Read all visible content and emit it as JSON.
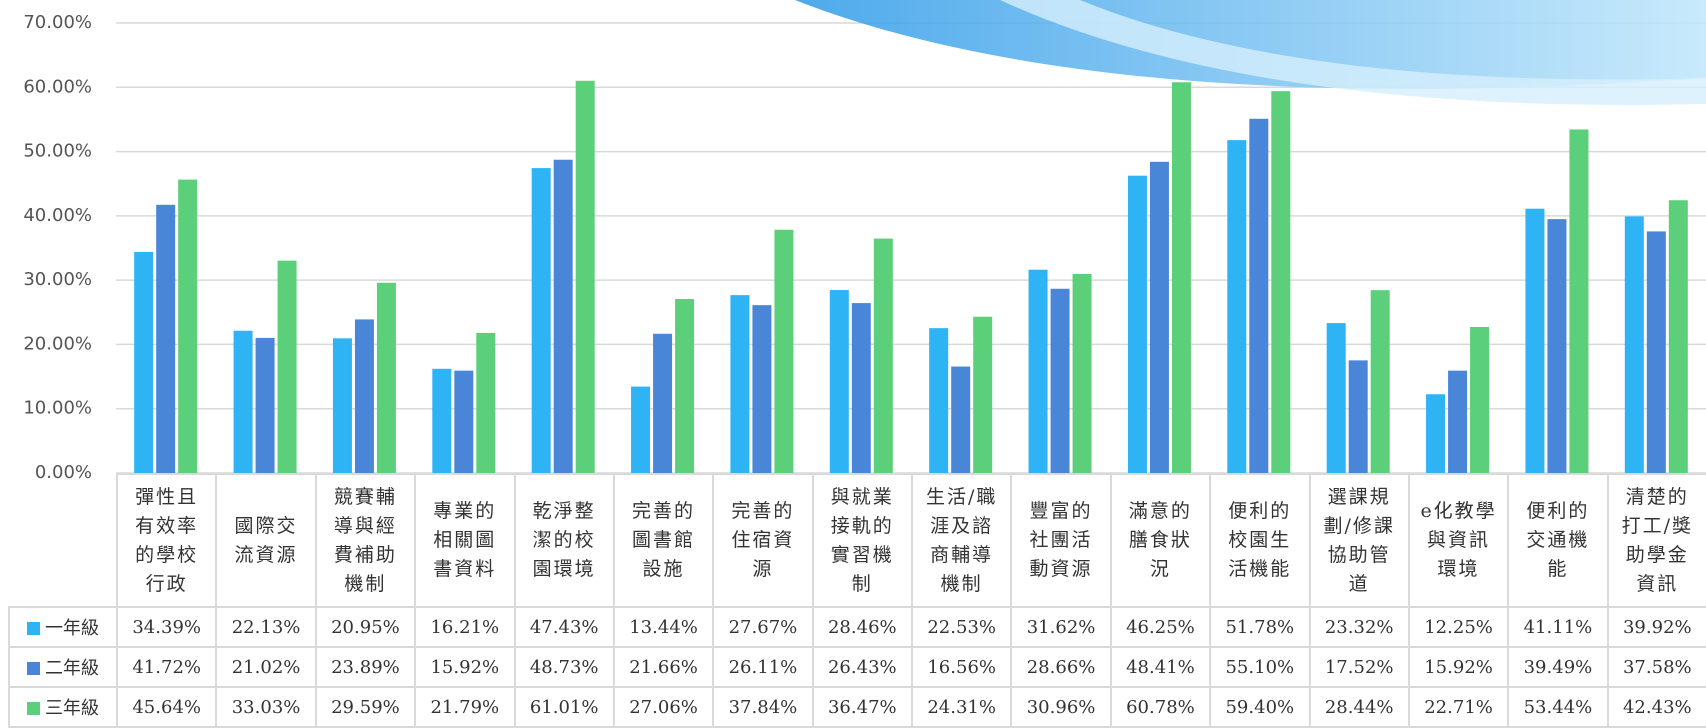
{
  "chart_data": {
    "type": "bar",
    "categories": [
      "彈性且有效率的學校行政",
      "國際交流資源",
      "競賽輔導與經費補助機制",
      "專業的相關圖書資料",
      "乾淨整潔的校園環境",
      "完善的圖書館設施",
      "完善的住宿資源",
      "與就業接軌的實習機制",
      "生活/職涯及諮商輔導機制",
      "豐富的社團活動資源",
      "滿意的膳食狀況",
      "便利的校園生活機能",
      "選課規劃/修課協助管道",
      "e化教學與資訊環境",
      "便利的交通機能",
      "清楚的打工/獎助學金資訊"
    ],
    "series": [
      {
        "name": "一年級",
        "color": "#2eb3f5",
        "values": [
          34.39,
          22.13,
          20.95,
          16.21,
          47.43,
          13.44,
          27.67,
          28.46,
          22.53,
          31.62,
          46.25,
          51.78,
          23.32,
          12.25,
          41.11,
          39.92
        ],
        "value_labels": [
          "34.39%",
          "22.13%",
          "20.95%",
          "16.21%",
          "47.43%",
          "13.44%",
          "27.67%",
          "28.46%",
          "22.53%",
          "31.62%",
          "46.25%",
          "51.78%",
          "23.32%",
          "12.25%",
          "41.11%",
          "39.92%"
        ]
      },
      {
        "name": "二年級",
        "color": "#4a86d8",
        "values": [
          41.72,
          21.02,
          23.89,
          15.92,
          48.73,
          21.66,
          26.11,
          26.43,
          16.56,
          28.66,
          48.41,
          55.1,
          17.52,
          15.92,
          39.49,
          37.58
        ],
        "value_labels": [
          "41.72%",
          "21.02%",
          "23.89%",
          "15.92%",
          "48.73%",
          "21.66%",
          "26.11%",
          "26.43%",
          "16.56%",
          "28.66%",
          "48.41%",
          "55.10%",
          "17.52%",
          "15.92%",
          "39.49%",
          "37.58%"
        ]
      },
      {
        "name": "三年級",
        "color": "#5ccf7a",
        "values": [
          45.64,
          33.03,
          29.59,
          21.79,
          61.01,
          27.06,
          37.84,
          36.47,
          24.31,
          30.96,
          60.78,
          59.4,
          28.44,
          22.71,
          53.44,
          42.43
        ],
        "value_labels": [
          "45.64%",
          "33.03%",
          "29.59%",
          "21.79%",
          "61.01%",
          "27.06%",
          "37.84%",
          "36.47%",
          "24.31%",
          "30.96%",
          "60.78%",
          "59.40%",
          "28.44%",
          "22.71%",
          "53.44%",
          "42.43%"
        ]
      }
    ],
    "ylim": [
      0,
      70
    ],
    "yticks": [
      {
        "value": 0,
        "label": "0.00%"
      },
      {
        "value": 10,
        "label": "10.00%"
      },
      {
        "value": 20,
        "label": "20.00%"
      },
      {
        "value": 30,
        "label": "30.00%"
      },
      {
        "value": 40,
        "label": "40.00%"
      },
      {
        "value": 50,
        "label": "50.00%"
      },
      {
        "value": 60,
        "label": "60.00%"
      },
      {
        "value": 70,
        "label": "70.00%"
      }
    ],
    "grid": true
  }
}
